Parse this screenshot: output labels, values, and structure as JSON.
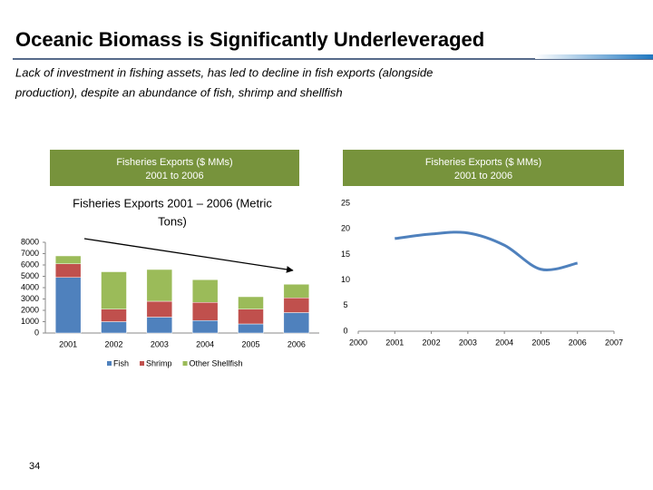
{
  "slide": {
    "title": "Oceanic Biomass is Significantly Underleveraged",
    "subtitle_lines": [
      "Lack of investment in fishing assets, has led to decline in fish exports (alongside",
      "production), despite an abundance of fish, shrimp and shellfish"
    ],
    "page_number": "34"
  },
  "chart_data": [
    {
      "type": "bar",
      "stacked": true,
      "header_lines": [
        "Fisheries Exports ($ MMs)",
        "2001 to 2006"
      ],
      "title_lines": [
        "Fisheries Exports 2001 – 2006 (Metric",
        "Tons)"
      ],
      "categories": [
        "2001",
        "2002",
        "2003",
        "2004",
        "2005",
        "2006"
      ],
      "series": [
        {
          "name": "Fish",
          "color": "#4f81bd",
          "values": [
            4900,
            1000,
            1400,
            1100,
            800,
            1800
          ]
        },
        {
          "name": "Shrimp",
          "color": "#c0504d",
          "values": [
            1200,
            1100,
            1400,
            1600,
            1300,
            1300
          ]
        },
        {
          "name": "Other Shellfish",
          "color": "#9bbb59",
          "values": [
            700,
            3300,
            2800,
            2000,
            1100,
            1200
          ]
        }
      ],
      "ylim": [
        0,
        8000
      ],
      "yticks": [
        0,
        1000,
        2000,
        3000,
        4000,
        5000,
        6000,
        7000,
        8000
      ],
      "legend": "bottom"
    },
    {
      "type": "line",
      "header_lines": [
        "Fisheries Exports ($ MMs)",
        "2001 to 2006"
      ],
      "x": [
        2001,
        2002,
        2003,
        2004,
        2005,
        2006
      ],
      "values": [
        18.1,
        19.0,
        19.2,
        16.8,
        12.1,
        13.3
      ],
      "color": "#4f81bd",
      "xlim": [
        2000,
        2007
      ],
      "xticks": [
        2000,
        2001,
        2002,
        2003,
        2004,
        2005,
        2006,
        2007
      ],
      "ylim": [
        0,
        25
      ],
      "yticks": [
        0,
        5,
        10,
        15,
        20,
        25
      ]
    }
  ]
}
